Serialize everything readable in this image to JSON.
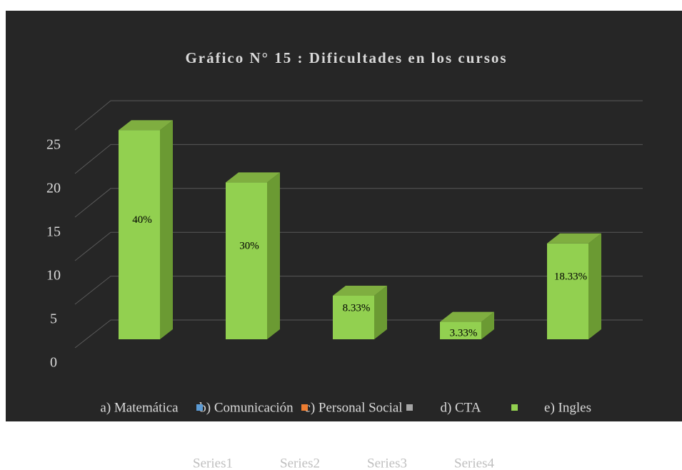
{
  "chart_data": {
    "type": "bar3d",
    "title": "Gráfico N° 15 :  Dificultades en los cursos",
    "categories": [
      "a)   Matemática",
      "b) Comunicación",
      "c) Personal Social",
      "d)   CTA",
      "e)   Ingles"
    ],
    "values": [
      24,
      18,
      5,
      2,
      11
    ],
    "value_labels": [
      "40%",
      "30%",
      "8.33%",
      "3.33%",
      "18.33%"
    ],
    "color": "#92d050",
    "ylim": [
      0,
      25
    ],
    "yticks": [
      0,
      5,
      10,
      15,
      20,
      25
    ],
    "grid": true,
    "legend": [
      {
        "name": "Series1",
        "color": "#5b9bd5"
      },
      {
        "name": "Series2",
        "color": "#ed7d31"
      },
      {
        "name": "Series3",
        "color": "#a5a5a5"
      },
      {
        "name": "Series4",
        "color": "#92d050"
      }
    ],
    "legend_position": "bottom"
  }
}
